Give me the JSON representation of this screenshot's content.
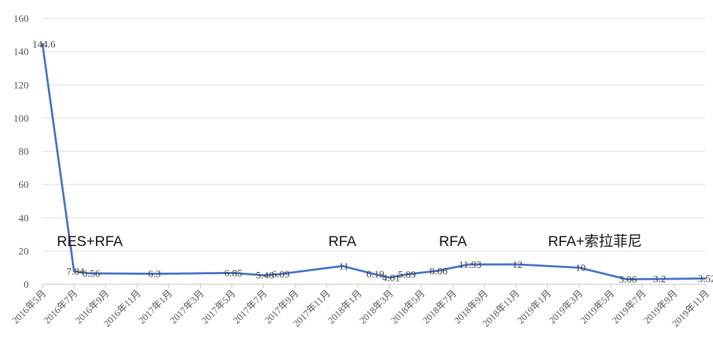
{
  "chart_data": {
    "type": "line",
    "x": [
      "2016年5月",
      "2016年7月",
      "2016年9月",
      "2016年11月",
      "2017年1月",
      "2017年3月",
      "2017年5月",
      "2017年7月",
      "2017年9月",
      "2017年11月",
      "2018年1月",
      "2018年3月",
      "2018年5月",
      "2018年7月",
      "2018年9月",
      "2018年11月",
      "2019年1月",
      "2019年3月",
      "2019年5月",
      "2019年7月",
      "2019年9月",
      "2019年11月"
    ],
    "series": [
      {
        "points": [
          {
            "x": "2016年5月",
            "y": 144.6,
            "label": "144.6"
          },
          {
            "x": "2016年7月",
            "y": 7.84,
            "label": "7.84"
          },
          {
            "x": "2016年8月",
            "y": 6.56,
            "label": "6.56"
          },
          {
            "x": "2016年12月",
            "y": 6.3,
            "label": "6.3"
          },
          {
            "x": "2017年5月",
            "y": 6.85,
            "label": "6.85"
          },
          {
            "x": "2017年7月",
            "y": 5.46,
            "label": "5.46"
          },
          {
            "x": "2017年8月",
            "y": 6.09,
            "label": "6.09"
          },
          {
            "x": "2017年12月",
            "y": 11,
            "label": "11"
          },
          {
            "x": "2018年2月",
            "y": 6.19,
            "label": "6.19"
          },
          {
            "x": "2018年3月",
            "y": 4.01,
            "label": "4.01"
          },
          {
            "x": "2018年4月",
            "y": 5.89,
            "label": "5.89"
          },
          {
            "x": "2018年6月",
            "y": 8.06,
            "label": "8.06"
          },
          {
            "x": "2018年8月",
            "y": 11.93,
            "label": "11.93"
          },
          {
            "x": "2018年11月",
            "y": 12,
            "label": "12"
          },
          {
            "x": "2019年3月",
            "y": 10,
            "label": "10"
          },
          {
            "x": "2019年6月",
            "y": 3.06,
            "label": "3.06"
          },
          {
            "x": "2019年8月",
            "y": 3.2,
            "label": "3.2"
          },
          {
            "x": "2019年11月",
            "y": 3.52,
            "label": "3.52"
          }
        ]
      }
    ],
    "ylim": [
      0,
      160
    ],
    "yticks": [
      "0",
      "20",
      "40",
      "60",
      "80",
      "100",
      "120",
      "140",
      "160"
    ],
    "grid": true,
    "annotations": [
      {
        "text": "RES+RFA",
        "x": "2016年8月"
      },
      {
        "text": "RFA",
        "x": "2017年12月"
      },
      {
        "text": "RFA",
        "x": "2018年7月"
      },
      {
        "text": "RFA+索拉菲尼",
        "x": "2019年4月"
      }
    ],
    "colors": {
      "line": "#4472C4",
      "grid": "#D9D9D9",
      "axis": "#BFBFBF"
    }
  }
}
